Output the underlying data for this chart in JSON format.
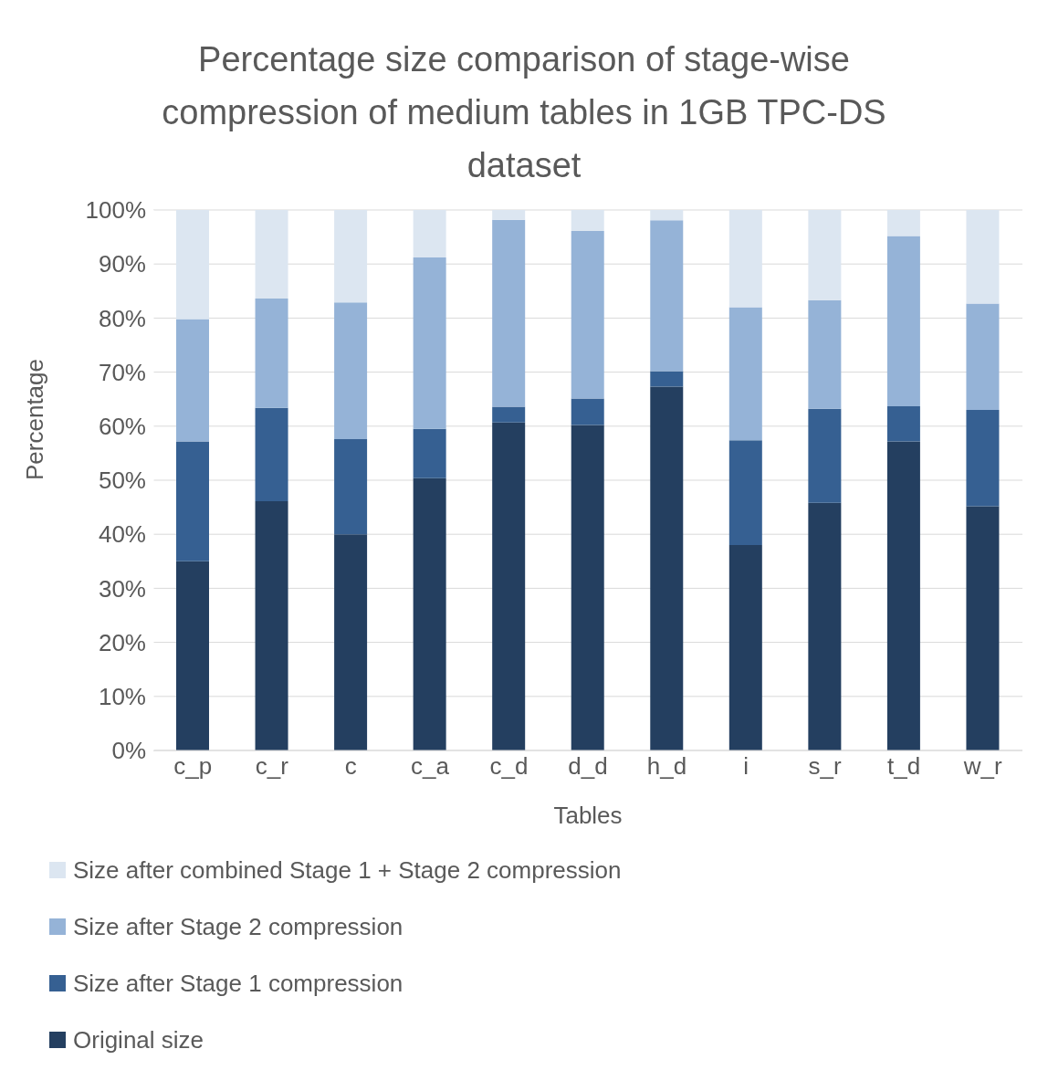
{
  "chart_data": {
    "type": "bar",
    "stacked": true,
    "title": "Percentage size comparison of stage-wise compression of medium tables in 1GB TPC-DS dataset",
    "xlabel": "Tables",
    "ylabel": "Percentage",
    "categories": [
      "c_p",
      "c_r",
      "c",
      "c_a",
      "c_d",
      "d_d",
      "h_d",
      "i",
      "s_r",
      "t_d",
      "w_r"
    ],
    "series": [
      {
        "name": "Original size",
        "color": "#243f60",
        "values": [
          35,
          46.1,
          40,
          50.4,
          60.7,
          60.2,
          67.3,
          38,
          45.8,
          57.2,
          45.2
        ]
      },
      {
        "name": "Size after Stage 1 compression",
        "color": "#366092",
        "values": [
          22.2,
          17.3,
          17.6,
          9.1,
          2.9,
          4.9,
          2.9,
          19.4,
          17.4,
          6.5,
          17.8
        ]
      },
      {
        "name": "Size after Stage 2 compression",
        "color": "#95b3d7",
        "values": [
          22.6,
          20.2,
          25.3,
          31.7,
          34.6,
          31,
          27.9,
          24.6,
          20.1,
          31.5,
          19.7
        ]
      },
      {
        "name": "Size after combined Stage 1 + Stage 2 compression",
        "color": "#dce6f1",
        "values": [
          20.2,
          16.4,
          17.1,
          8.8,
          1.8,
          3.9,
          1.9,
          18,
          16.7,
          4.8,
          17.3
        ]
      }
    ],
    "ylim": [
      0,
      100
    ],
    "yticks": [
      {
        "value": 0,
        "label": "0%"
      },
      {
        "value": 10,
        "label": "10%"
      },
      {
        "value": 20,
        "label": "20%"
      },
      {
        "value": 30,
        "label": "30%"
      },
      {
        "value": 40,
        "label": "40%"
      },
      {
        "value": 50,
        "label": "50%"
      },
      {
        "value": 60,
        "label": "60%"
      },
      {
        "value": 70,
        "label": "70%"
      },
      {
        "value": 80,
        "label": "80%"
      },
      {
        "value": 90,
        "label": "90%"
      },
      {
        "value": 100,
        "label": "100%"
      }
    ],
    "grid": "y",
    "legend": "bottom"
  }
}
